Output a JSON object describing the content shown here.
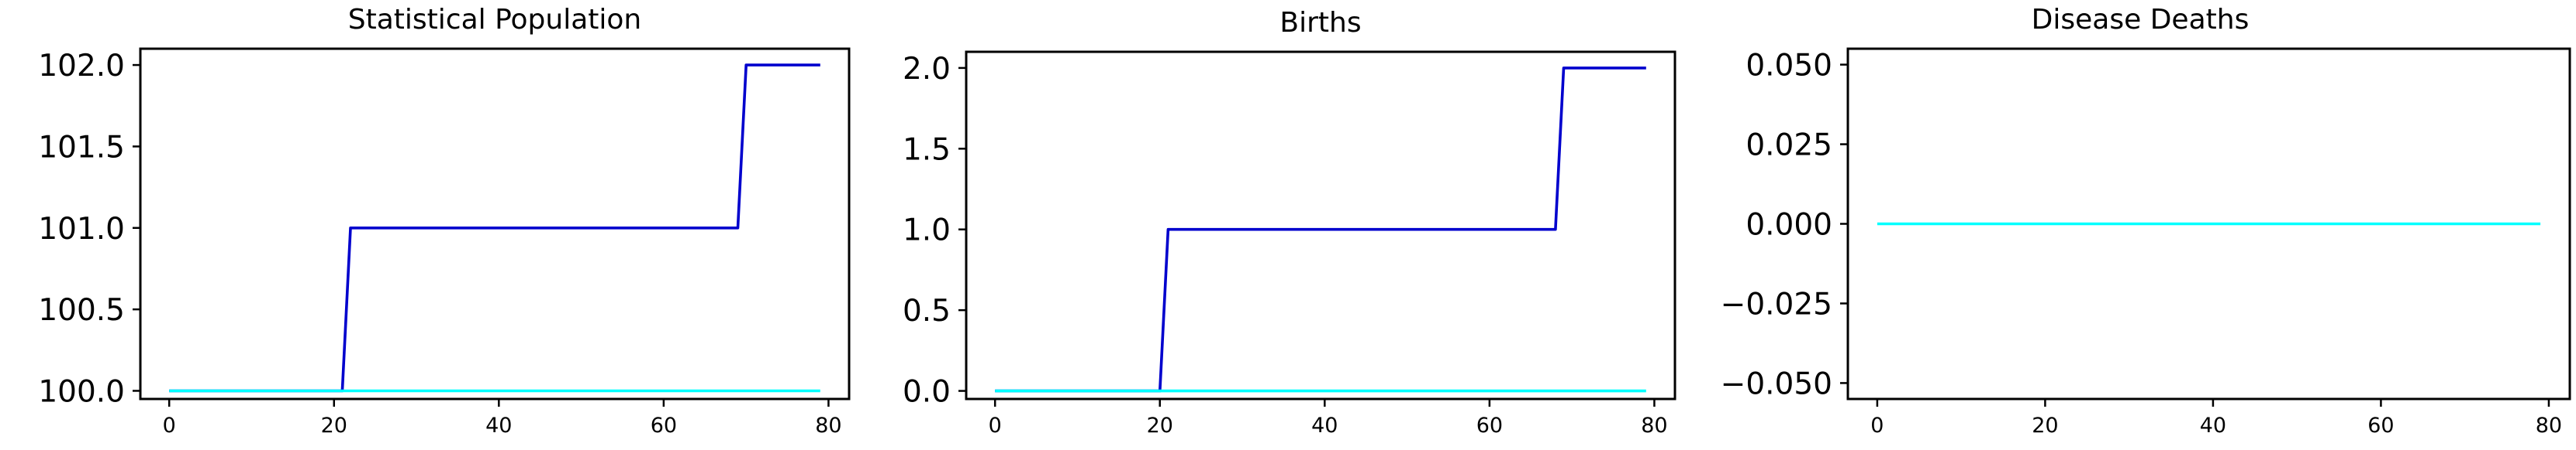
{
  "chart_data": [
    {
      "type": "line",
      "title": "Statistical Population",
      "xlabel": "",
      "ylabel": "",
      "xlim": [
        -3.5,
        82.5
      ],
      "ylim": [
        99.95,
        102.1
      ],
      "xticks": [
        0,
        20,
        40,
        60,
        80
      ],
      "xtick_labels": [
        "0",
        "20",
        "40",
        "60",
        "80"
      ],
      "yticks": [
        100.0,
        100.5,
        101.0,
        101.5,
        102.0
      ],
      "ytick_labels": [
        "100.0",
        "100.5",
        "101.0",
        "101.5",
        "102.0"
      ],
      "grid": false,
      "series": [
        {
          "color": "#0000cd",
          "points": [
            [
              0,
              100
            ],
            [
              21,
              100
            ],
            [
              22,
              101
            ],
            [
              69,
              101
            ],
            [
              70,
              102
            ],
            [
              79,
              102
            ]
          ]
        },
        {
          "color": "#00ffff",
          "points": [
            [
              0,
              100
            ],
            [
              79,
              100
            ]
          ]
        }
      ]
    },
    {
      "type": "line",
      "title": "Births",
      "xlabel": "",
      "ylabel": "",
      "xlim": [
        -3.5,
        82.5
      ],
      "ylim": [
        -0.05,
        2.1
      ],
      "xticks": [
        0,
        20,
        40,
        60,
        80
      ],
      "xtick_labels": [
        "0",
        "20",
        "40",
        "60",
        "80"
      ],
      "yticks": [
        0.0,
        0.5,
        1.0,
        1.5,
        2.0
      ],
      "ytick_labels": [
        "0.0",
        "0.5",
        "1.0",
        "1.5",
        "2.0"
      ],
      "grid": false,
      "series": [
        {
          "color": "#0000cd",
          "points": [
            [
              0,
              0
            ],
            [
              20,
              0
            ],
            [
              21,
              1
            ],
            [
              68,
              1
            ],
            [
              69,
              2
            ],
            [
              79,
              2
            ]
          ]
        },
        {
          "color": "#00ffff",
          "points": [
            [
              0,
              0
            ],
            [
              79,
              0
            ]
          ]
        }
      ]
    },
    {
      "type": "line",
      "title": "Disease Deaths",
      "xlabel": "",
      "ylabel": "",
      "xlim": [
        -3.5,
        82.5
      ],
      "ylim": [
        -0.055,
        0.055
      ],
      "xticks": [
        0,
        20,
        40,
        60,
        80
      ],
      "xtick_labels": [
        "0",
        "20",
        "40",
        "60",
        "80"
      ],
      "yticks": [
        -0.05,
        -0.025,
        0.0,
        0.025,
        0.05
      ],
      "ytick_labels": [
        "−0.050",
        "−0.025",
        "0.000",
        "0.025",
        "0.050"
      ],
      "grid": false,
      "series": [
        {
          "color": "#00ffff",
          "points": [
            [
              0,
              0
            ],
            [
              79,
              0
            ]
          ]
        }
      ]
    }
  ]
}
